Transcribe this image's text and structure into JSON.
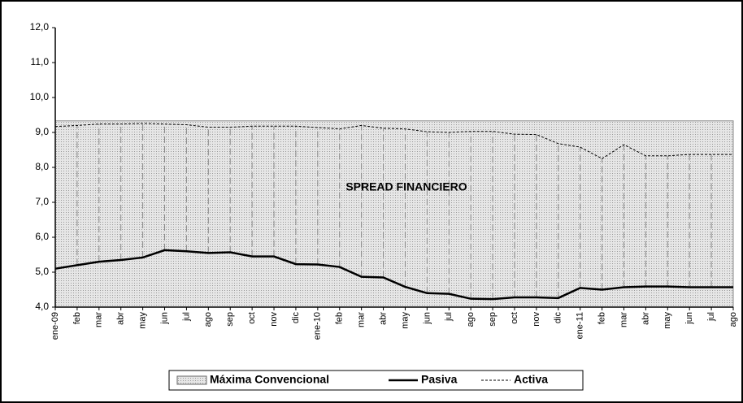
{
  "chart_data": {
    "type": "line",
    "annotation": "SPREAD FINANCIERO",
    "categories": [
      "ene-09",
      "feb",
      "mar",
      "abr",
      "may",
      "jun",
      "jul",
      "ago",
      "sep",
      "oct",
      "nov",
      "dic",
      "ene-10",
      "feb",
      "mar",
      "abr",
      "may",
      "jun",
      "jul",
      "ago",
      "sep",
      "oct",
      "nov",
      "dic",
      "ene-11",
      "feb",
      "mar",
      "abr",
      "may",
      "jun",
      "jul",
      "ago"
    ],
    "series": [
      {
        "name": "Máxima Convencional",
        "color": "#d4d4d4",
        "kind": "area",
        "values": [
          9.33,
          9.33,
          9.33,
          9.33,
          9.33,
          9.33,
          9.33,
          9.33,
          9.33,
          9.33,
          9.33,
          9.33,
          9.33,
          9.33,
          9.33,
          9.33,
          9.33,
          9.33,
          9.33,
          9.33,
          9.33,
          9.33,
          9.33,
          9.33,
          9.33,
          9.33,
          9.33,
          9.33,
          9.33,
          9.33,
          9.33,
          9.33
        ]
      },
      {
        "name": "Pasiva",
        "color": "#000000",
        "kind": "solid",
        "values": [
          5.1,
          5.2,
          5.3,
          5.35,
          5.42,
          5.63,
          5.6,
          5.55,
          5.57,
          5.45,
          5.45,
          5.23,
          5.22,
          5.15,
          4.87,
          4.85,
          4.58,
          4.4,
          4.38,
          4.24,
          4.23,
          4.28,
          4.28,
          4.26,
          4.55,
          4.5,
          4.57,
          4.59,
          4.59,
          4.57,
          4.57,
          4.57
        ]
      },
      {
        "name": "Activa",
        "color": "#000000",
        "kind": "dashed",
        "values": [
          9.17,
          9.2,
          9.24,
          9.24,
          9.26,
          9.24,
          9.22,
          9.15,
          9.15,
          9.18,
          9.18,
          9.18,
          9.14,
          9.1,
          9.2,
          9.12,
          9.1,
          9.02,
          9.0,
          9.03,
          9.03,
          8.95,
          8.94,
          8.68,
          8.58,
          8.25,
          8.65,
          8.33,
          8.33,
          8.37,
          8.37,
          8.37
        ]
      }
    ],
    "drop_lines": true,
    "ylim": [
      4,
      12
    ],
    "yticks": [
      {
        "value": 4,
        "label": "4,0"
      },
      {
        "value": 5,
        "label": "5,0"
      },
      {
        "value": 6,
        "label": "6,0"
      },
      {
        "value": 7,
        "label": "7,0"
      },
      {
        "value": 8,
        "label": "8,0"
      },
      {
        "value": 9,
        "label": "9,0"
      },
      {
        "value": 10,
        "label": "10,0"
      },
      {
        "value": 11,
        "label": "11,0"
      },
      {
        "value": 12,
        "label": "12,0"
      }
    ]
  }
}
